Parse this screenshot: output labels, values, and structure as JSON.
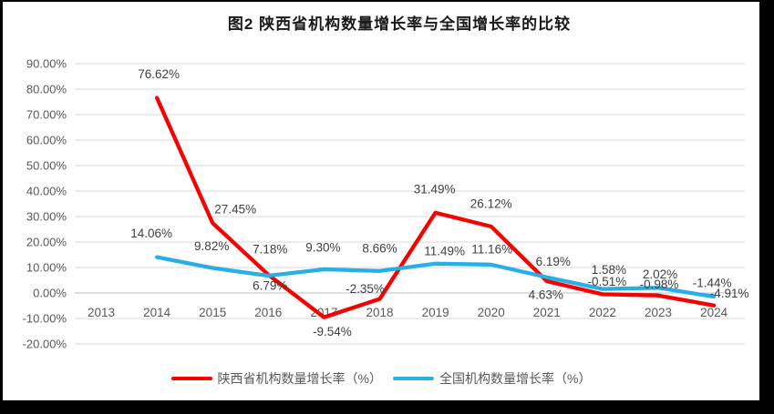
{
  "title": "图2 陕西省机构数量增长率与全国增长率的比较",
  "chart_data": {
    "type": "line",
    "title": "图2 陕西省机构数量增长率与全国增长率的比较",
    "categories": [
      "2013",
      "2014",
      "2015",
      "2016",
      "2017",
      "2018",
      "2019",
      "2020",
      "2021",
      "2022",
      "2023",
      "2024"
    ],
    "series": [
      {
        "name": "陕西省机构数量增长率（%）",
        "color": "#F80000",
        "values": [
          null,
          76.62,
          27.45,
          7.18,
          -9.54,
          -2.35,
          31.49,
          26.12,
          4.63,
          -0.51,
          -0.98,
          -4.91
        ],
        "labels": [
          "",
          "76.62%",
          "27.45%",
          "7.18%",
          "-9.54%",
          "-2.35%",
          "31.49%",
          "26.12%",
          "4.63%",
          "-0.51%",
          "-0.98%",
          "-4.91%"
        ]
      },
      {
        "name": "全国机构数量增长率（%）",
        "color": "#29AFE5",
        "values": [
          null,
          14.06,
          9.82,
          6.79,
          9.3,
          8.66,
          11.49,
          11.16,
          6.19,
          1.58,
          2.02,
          -1.44
        ],
        "labels": [
          "",
          "14.06%",
          "9.82%",
          "6.79%",
          "9.30%",
          "8.66%",
          "11.49%",
          "11.16%",
          "6.19%",
          "1.58%",
          "2.02%",
          "-1.44%"
        ]
      }
    ],
    "y_ticks": [
      {
        "value": 90,
        "label": "90.00%"
      },
      {
        "value": 80,
        "label": "80.00%"
      },
      {
        "value": 70,
        "label": "70.00%"
      },
      {
        "value": 60,
        "label": "60.00%"
      },
      {
        "value": 50,
        "label": "50.00%"
      },
      {
        "value": 40,
        "label": "40.00%"
      },
      {
        "value": 30,
        "label": "30.00%"
      },
      {
        "value": 20,
        "label": "20.00%"
      },
      {
        "value": 10,
        "label": "10.00%"
      },
      {
        "value": 0,
        "label": "0.00%"
      },
      {
        "value": -10,
        "label": "-10.00%"
      },
      {
        "value": -20,
        "label": "-20.00%"
      }
    ],
    "ylim": [
      -20,
      90
    ],
    "grid": true,
    "data_labels": true,
    "legend_position": "bottom"
  },
  "colors": {
    "grid": "#D9D9D9",
    "zero_axis": "#BFBFBF",
    "axis_text": "#595959",
    "label_text": "#404040",
    "background": "#FFFFFF",
    "frame": "#000000"
  }
}
